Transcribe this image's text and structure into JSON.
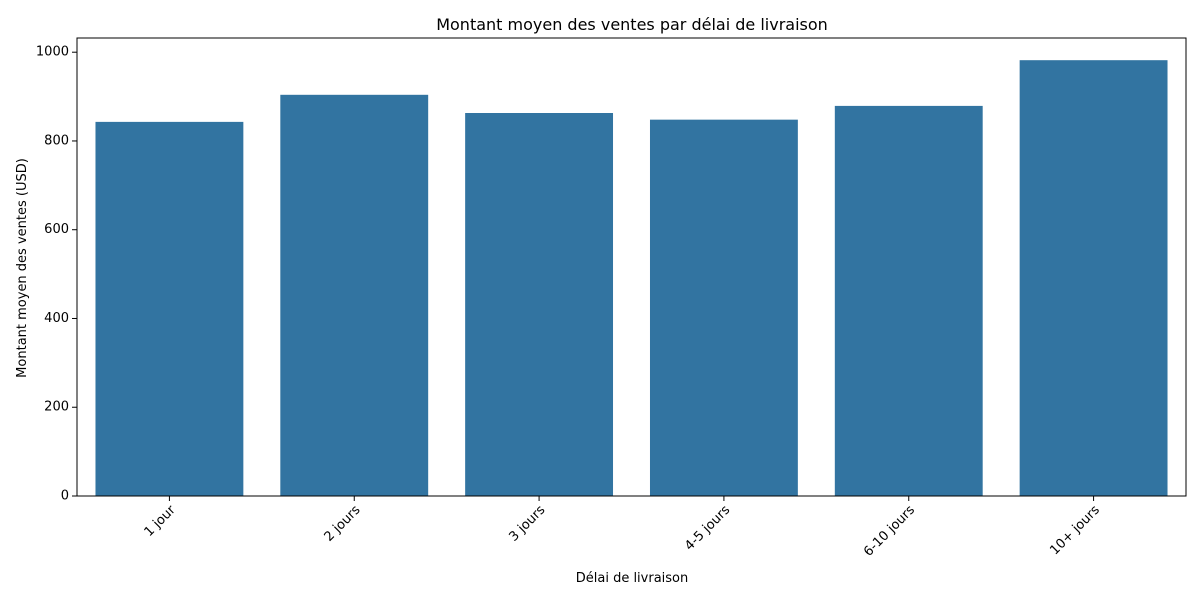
{
  "chart_data": {
    "type": "bar",
    "title": "Montant moyen des ventes par délai de livraison",
    "xlabel": "Délai de livraison",
    "ylabel": "Montant moyen des ventes (USD)",
    "categories": [
      "1 jour",
      "2 jours",
      "3 jours",
      "4-5 jours",
      "6-10 jours",
      "10+ jours"
    ],
    "values": [
      843,
      904,
      863,
      848,
      879,
      982
    ],
    "ylim": [
      0,
      1032
    ],
    "yticks": [
      0,
      200,
      400,
      600,
      800,
      1000
    ],
    "grid": false,
    "legend": "none",
    "bar_color": "#3274a1"
  }
}
